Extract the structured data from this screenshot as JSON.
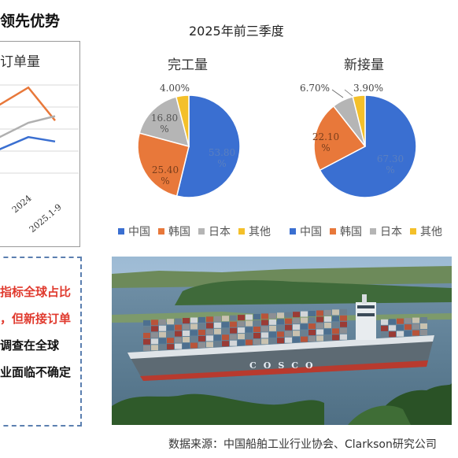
{
  "headline": "领先优势",
  "left_chart": {
    "title": "订单量",
    "tick_labels": [
      "2024",
      "2025.1-9"
    ]
  },
  "bullets": [
    {
      "text": "指标全球占比",
      "color": "#e03a2e"
    },
    {
      "text": "，但新接订单",
      "color": "#e03a2e"
    },
    {
      "text": "调查在全球",
      "color": "#111111"
    },
    {
      "text": "业面临不确定",
      "color": "#111111"
    }
  ],
  "period": "2025年前三季度",
  "colors": {
    "china": "#3a6fd1",
    "korea": "#e8783a",
    "japan": "#b5b5b5",
    "other": "#f4c02a"
  },
  "legend": [
    "中国",
    "韩国",
    "日本",
    "其他"
  ],
  "chart_data": [
    {
      "type": "line",
      "title": "订单量",
      "categories": [
        "",
        "2024",
        "2025.1-9"
      ],
      "series": [
        {
          "values": [
            68,
            92,
            62
          ]
        },
        {
          "values": [
            40,
            60,
            66
          ]
        },
        {
          "values": [
            30,
            47,
            43
          ]
        }
      ],
      "tick_labels": [
        "2024",
        "2025.1-9"
      ]
    },
    {
      "type": "pie",
      "title": "完工量",
      "categories": [
        "中国",
        "韩国",
        "日本",
        "其他"
      ],
      "values": [
        53.8,
        25.4,
        16.8,
        4.0
      ],
      "labels": [
        "53.80%",
        "25.40%",
        "16.80%",
        "4.00%"
      ]
    },
    {
      "type": "pie",
      "title": "新接量",
      "categories": [
        "中国",
        "韩国",
        "日本",
        "其他"
      ],
      "values": [
        67.3,
        22.1,
        6.7,
        3.9
      ],
      "labels": [
        "67.30%",
        "22.10%",
        "6.70%",
        "3.90%"
      ]
    }
  ],
  "photo": {
    "hull_text": "COSCO"
  },
  "source": "数据来源：中国船舶工业行业协会、Clarkson研究公司"
}
